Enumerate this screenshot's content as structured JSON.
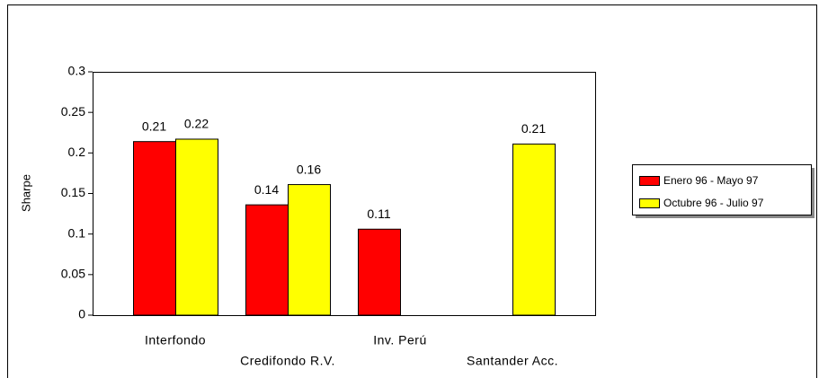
{
  "chart_data": {
    "type": "bar",
    "y_label": "Sharpe",
    "categories": [
      "Interfondo",
      "Credifondo R.V.",
      "Inv. Perú",
      "Santander Acc."
    ],
    "series": [
      {
        "name": "Enero 96 - Mayo 97",
        "color": "#ff0000",
        "values": [
          0.214,
          0.136,
          0.106,
          null
        ],
        "value_labels": [
          "0.21",
          "0.14",
          "0.11",
          null
        ]
      },
      {
        "name": "Octubre 96 - Julio 97",
        "color": "#ffff00",
        "values": [
          0.217,
          0.161,
          null,
          0.211
        ],
        "value_labels": [
          "0.22",
          "0.16",
          null,
          "0.21"
        ]
      }
    ],
    "ylim": [
      0,
      0.3
    ],
    "yticks": [
      0,
      0.05,
      0.1,
      0.15,
      0.2,
      0.25,
      0.3
    ]
  }
}
